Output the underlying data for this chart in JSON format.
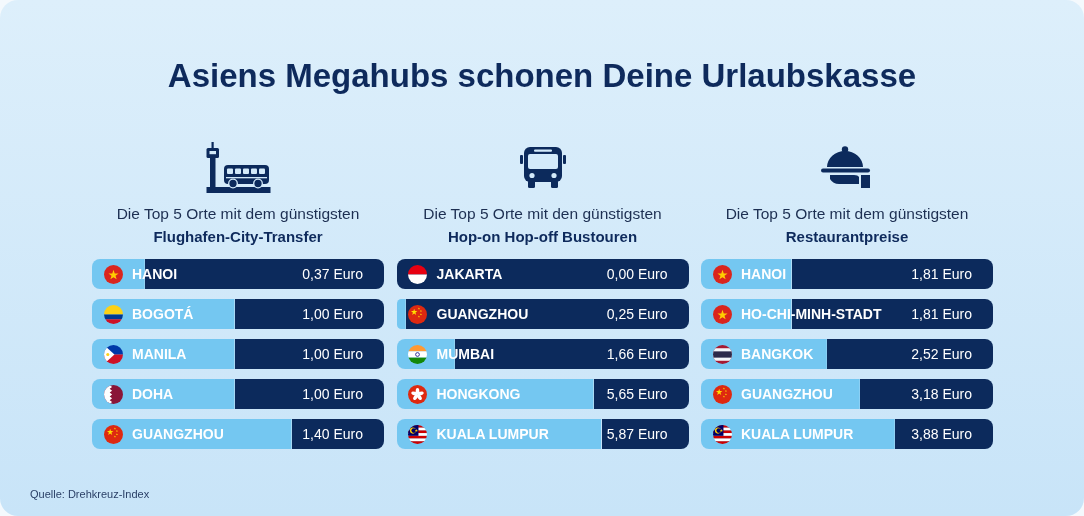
{
  "chart_data": [
    {
      "type": "other",
      "title": "Asiens Megahubs schonen Deine Urlaubskasse"
    },
    {
      "type": "bar",
      "orientation": "horizontal",
      "title": "Die Top 5 Orte mit dem günstigsten",
      "subtitle": "Flughafen-City-Transfer",
      "categories": [
        "HANOI",
        "BOGOTÁ",
        "MANILA",
        "DOHA",
        "GUANGZHOU"
      ],
      "values": [
        0.37,
        1.0,
        1.0,
        1.0,
        1.4
      ],
      "value_labels": [
        "0,37 Euro",
        "1,00 Euro",
        "1,00 Euro",
        "1,00 Euro",
        "1,40 Euro"
      ],
      "color": "#74c7f1",
      "xlim": [
        0,
        2.05
      ],
      "tick_labels": "y"
    },
    {
      "type": "bar",
      "orientation": "horizontal",
      "title": "Die Top 5 Orte mit den günstigsten",
      "subtitle": "Hop-on Hop-off Bustouren",
      "categories": [
        "JAKARTA",
        "GUANGZHOU",
        "MUMBAI",
        "HONGKONG",
        "KUALA LUMPUR"
      ],
      "values": [
        0.0,
        0.25,
        1.66,
        5.65,
        5.87
      ],
      "value_labels": [
        "0,00 Euro",
        "0,25 Euro",
        "1,66 Euro",
        "5,65 Euro",
        "5,87 Euro"
      ],
      "color": "#74c7f1",
      "xlim": [
        0,
        8.4
      ],
      "tick_labels": "y"
    },
    {
      "type": "bar",
      "orientation": "horizontal",
      "title": "Die Top 5 Orte mit dem günstigsten",
      "subtitle": "Restaurantpreise",
      "categories": [
        "HANOI",
        "HO-CHI-MINH-STADT",
        "BANGKOK",
        "GUANGZHOU",
        "KUALA LUMPUR"
      ],
      "values": [
        1.81,
        1.81,
        2.52,
        3.18,
        3.88
      ],
      "value_labels": [
        "1,81 Euro",
        "1,81 Euro",
        "2,52 Euro",
        "3,18 Euro",
        "3,88 Euro"
      ],
      "color": "#74c7f1",
      "xlim": [
        0,
        5.85
      ],
      "tick_labels": "y"
    },
    {
      "type": "other",
      "annotations": [
        "Quelle: Drehkreuz-Index"
      ]
    }
  ]
}
